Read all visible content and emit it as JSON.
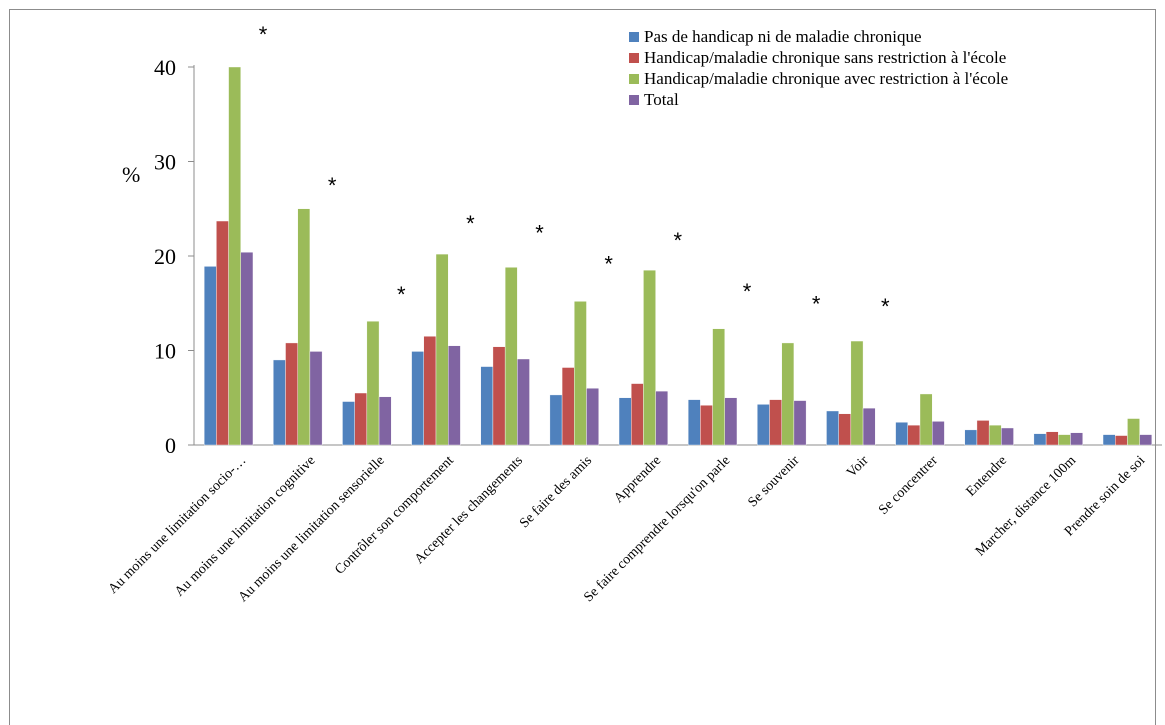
{
  "chart_data": {
    "type": "bar",
    "ylabel": "%",
    "ylim": [
      0,
      40
    ],
    "yticks": [
      0,
      10,
      20,
      30,
      40
    ],
    "grid": false,
    "legend_position": "top-right",
    "categories": [
      "Au moins une limitation socio-…",
      "Au moins une limitation cognitive",
      "Au moins une limitation sensorielle",
      "Contrôler son comportement",
      "Accepter les changements",
      "Se faire des amis",
      "Apprendre",
      "Se faire comprendre lorsqu'on parle",
      "Se souvenir",
      "Voir",
      "Se concentrer",
      "Entendre",
      "Marcher, distance 100m",
      "Prendre soin de soi"
    ],
    "series": [
      {
        "name": "Pas de handicap ni de maladie chronique",
        "color": "#4F81BD",
        "values": [
          18.9,
          9.0,
          4.6,
          9.9,
          8.3,
          5.3,
          5.0,
          4.8,
          4.3,
          3.6,
          2.4,
          1.6,
          1.2,
          1.1
        ]
      },
      {
        "name": "Handicap/maladie chronique sans restriction à l'école",
        "color": "#C0504D",
        "values": [
          23.7,
          10.8,
          5.5,
          11.5,
          10.4,
          8.2,
          6.5,
          4.2,
          4.8,
          3.3,
          2.1,
          2.6,
          1.4,
          1.0
        ]
      },
      {
        "name": "Handicap/maladie chronique avec restriction à l'école",
        "color": "#9BBB59",
        "values": [
          40.0,
          25.0,
          13.1,
          20.2,
          18.8,
          15.2,
          18.5,
          12.3,
          10.8,
          11.0,
          5.4,
          2.1,
          1.1,
          2.8
        ]
      },
      {
        "name": "Total",
        "color": "#8064A2",
        "values": [
          20.4,
          9.9,
          5.1,
          10.5,
          9.1,
          6.0,
          5.7,
          5.0,
          4.7,
          3.9,
          2.5,
          1.8,
          1.3,
          1.1
        ]
      }
    ],
    "annotations": [
      {
        "text": "*",
        "category": 0,
        "level": 43.5
      },
      {
        "text": "*",
        "category": 1,
        "level": 27.5
      },
      {
        "text": "*",
        "category": 2,
        "level": 16.0
      },
      {
        "text": "*",
        "category": 3,
        "level": 23.5
      },
      {
        "text": "*",
        "category": 4,
        "level": 22.5
      },
      {
        "text": "*",
        "category": 5,
        "level": 19.2
      },
      {
        "text": "*",
        "category": 6,
        "level": 21.7
      },
      {
        "text": "*",
        "category": 7,
        "level": 16.3
      },
      {
        "text": "*",
        "category": 8,
        "level": 15.0
      },
      {
        "text": "*",
        "category": 9,
        "level": 14.7
      }
    ]
  }
}
